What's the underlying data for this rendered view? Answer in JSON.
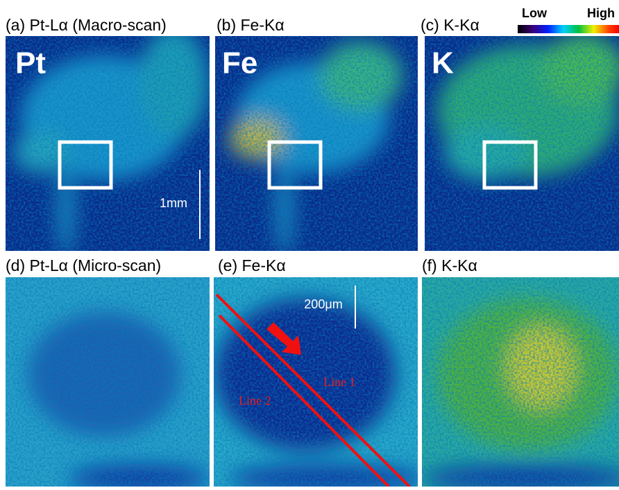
{
  "colorbar": {
    "low": "Low",
    "high": "High"
  },
  "panels": [
    {
      "label": "(a) Pt-Lα (Macro-scan)",
      "element": "Pt",
      "scale": "1mm"
    },
    {
      "label": "(b) Fe-Kα",
      "element": "Fe"
    },
    {
      "label": "(c) K-Kα",
      "element": "K"
    },
    {
      "label": "(d) Pt-Lα (Micro-scan)"
    },
    {
      "label": "(e) Fe-Kα",
      "scale": "200μm",
      "lines": [
        "Line 1",
        "Line 2"
      ]
    },
    {
      "label": "(f) K-Kα"
    }
  ]
}
